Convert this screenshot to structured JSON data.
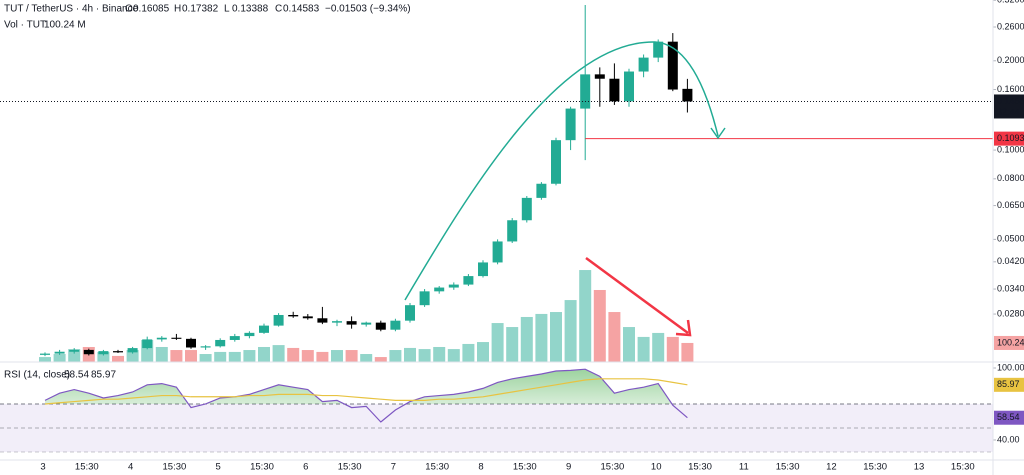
{
  "chart_data": [
    {
      "type": "candlestick",
      "title": "TUT / TetherUS · 4h · Binance",
      "legend_labels": {
        "open": "O",
        "high": "H",
        "low": "L",
        "close": "C"
      },
      "change": "−0.01503 (−9.34%)",
      "open": [
        0.0204,
        0.0206,
        0.0209,
        0.0212,
        0.0205,
        0.021,
        0.0208,
        0.0215,
        0.023,
        0.0233,
        0.0231,
        0.0216,
        0.0218,
        0.0229,
        0.0236,
        0.0242,
        0.0256,
        0.0278,
        0.0275,
        0.0271,
        0.0262,
        0.0265,
        0.0258,
        0.0262,
        0.0248,
        0.0266,
        0.03,
        0.0334,
        0.0344,
        0.0352,
        0.0376,
        0.0418,
        0.0492,
        0.058,
        0.069,
        0.077,
        0.108,
        0.138,
        0.18,
        0.174,
        0.146,
        0.184,
        0.205,
        0.232,
        0.16085
      ],
      "high": [
        0.0208,
        0.0212,
        0.0215,
        0.0214,
        0.0212,
        0.0212,
        0.0217,
        0.0235,
        0.0236,
        0.024,
        0.0233,
        0.022,
        0.0232,
        0.024,
        0.0245,
        0.026,
        0.0282,
        0.0285,
        0.028,
        0.0296,
        0.0268,
        0.0275,
        0.0264,
        0.0266,
        0.027,
        0.0305,
        0.034,
        0.0348,
        0.0358,
        0.0382,
        0.0425,
        0.05,
        0.059,
        0.07,
        0.078,
        0.11,
        0.14,
        0.3085,
        0.19,
        0.196,
        0.188,
        0.21,
        0.236,
        0.248,
        0.17382
      ],
      "low": [
        0.0202,
        0.0204,
        0.0206,
        0.0203,
        0.0203,
        0.0207,
        0.0206,
        0.0213,
        0.0226,
        0.0229,
        0.0214,
        0.0212,
        0.0216,
        0.0226,
        0.0232,
        0.024,
        0.0254,
        0.0272,
        0.0268,
        0.0259,
        0.0255,
        0.025,
        0.0254,
        0.0245,
        0.0245,
        0.0262,
        0.0296,
        0.0328,
        0.0338,
        0.0348,
        0.0372,
        0.0412,
        0.0486,
        0.057,
        0.068,
        0.076,
        0.1,
        0.0925,
        0.14,
        0.142,
        0.14,
        0.176,
        0.198,
        0.158,
        0.13388
      ],
      "close": [
        0.0206,
        0.0209,
        0.0212,
        0.0205,
        0.021,
        0.0208,
        0.0215,
        0.023,
        0.0233,
        0.0231,
        0.0216,
        0.0218,
        0.0229,
        0.0236,
        0.0242,
        0.0256,
        0.0278,
        0.0275,
        0.0271,
        0.0262,
        0.0265,
        0.0258,
        0.0262,
        0.0248,
        0.0266,
        0.03,
        0.0334,
        0.0344,
        0.0352,
        0.0376,
        0.0418,
        0.0492,
        0.058,
        0.069,
        0.077,
        0.108,
        0.138,
        0.18,
        0.174,
        0.146,
        0.184,
        0.205,
        0.232,
        0.16,
        0.14583
      ],
      "up_color": "#22ab94",
      "down_color": "#000000",
      "volume": {
        "name": "Vol · TUT",
        "legend_value": "100.24 M",
        "last_label": "100.24",
        "values": [
          26,
          42,
          68,
          79,
          53,
          32,
          63,
          116,
          79,
          63,
          63,
          42,
          53,
          53,
          63,
          79,
          89,
          74,
          63,
          53,
          63,
          63,
          42,
          26,
          63,
          74,
          68,
          79,
          68,
          95,
          105,
          205,
          184,
          237,
          253,
          263,
          326,
          484,
          379,
          263,
          184,
          132,
          153,
          132,
          100.24
        ],
        "vlim": [
          0,
          500
        ],
        "up_color": "#92d5ca",
        "down_color": "#f5a3a3"
      },
      "log_scale": true,
      "ylim": [
        0.0193,
        0.3206
      ],
      "yticks": [
        {
          "value": 0.32,
          "label": "0.3200"
        },
        {
          "value": 0.26,
          "label": "0.2600"
        },
        {
          "value": 0.2,
          "label": "0.2000"
        },
        {
          "value": 0.16,
          "label": "0.1600"
        },
        {
          "value": 0.1,
          "label": "0.1000"
        },
        {
          "value": 0.08,
          "label": "0.0800"
        },
        {
          "value": 0.065,
          "label": "0.0650"
        },
        {
          "value": 0.05,
          "label": "0.0500"
        },
        {
          "value": 0.042,
          "label": "0.0420"
        },
        {
          "value": 0.034,
          "label": "0.0340"
        },
        {
          "value": 0.028,
          "label": "0.0280"
        }
      ],
      "last_price_label": "0.1458",
      "countdown": "32:44",
      "hline": {
        "value": 0.1093,
        "label": "0.1093",
        "color": "#f23645"
      },
      "time_labels": [
        "3",
        "15:30",
        "4",
        "15:30",
        "5",
        "15:30",
        "6",
        "15:30",
        "7",
        "15:30",
        "8",
        "15:30",
        "9",
        "15:30",
        "10",
        "15:30",
        "11",
        "15:30",
        "12",
        "15:30",
        "13",
        "15:30"
      ]
    },
    {
      "type": "line",
      "title": "RSI (14, close)",
      "series": [
        {
          "color": "#7e57c2",
          "values": [
            73,
            79,
            82,
            79,
            75,
            77,
            80,
            86,
            87,
            84,
            67,
            70,
            75,
            76,
            78,
            82,
            86,
            84,
            82,
            72,
            73,
            67,
            68,
            55,
            65,
            72,
            76,
            77,
            78,
            80,
            83,
            88,
            91,
            93,
            95,
            97.5,
            98,
            99,
            93,
            79,
            82,
            84,
            87,
            69,
            58.54
          ]
        },
        {
          "color": "#e8c341",
          "values": [
            70,
            71,
            72,
            73,
            74,
            74,
            75,
            76,
            77,
            77,
            76,
            76,
            76,
            76,
            77,
            77,
            78,
            78,
            78,
            77,
            77,
            76,
            75,
            74,
            73,
            73,
            73,
            74,
            74,
            75,
            76,
            78,
            80,
            82,
            84,
            86,
            88,
            90,
            91,
            91,
            91,
            91,
            90,
            88,
            85.97
          ]
        }
      ],
      "ylim": [
        23.3,
        105
      ],
      "yticks": [
        {
          "value": 100,
          "label": "100.00"
        },
        {
          "value": 40,
          "label": "40.00"
        }
      ],
      "band": [
        30,
        70
      ],
      "midline": 50
    }
  ]
}
